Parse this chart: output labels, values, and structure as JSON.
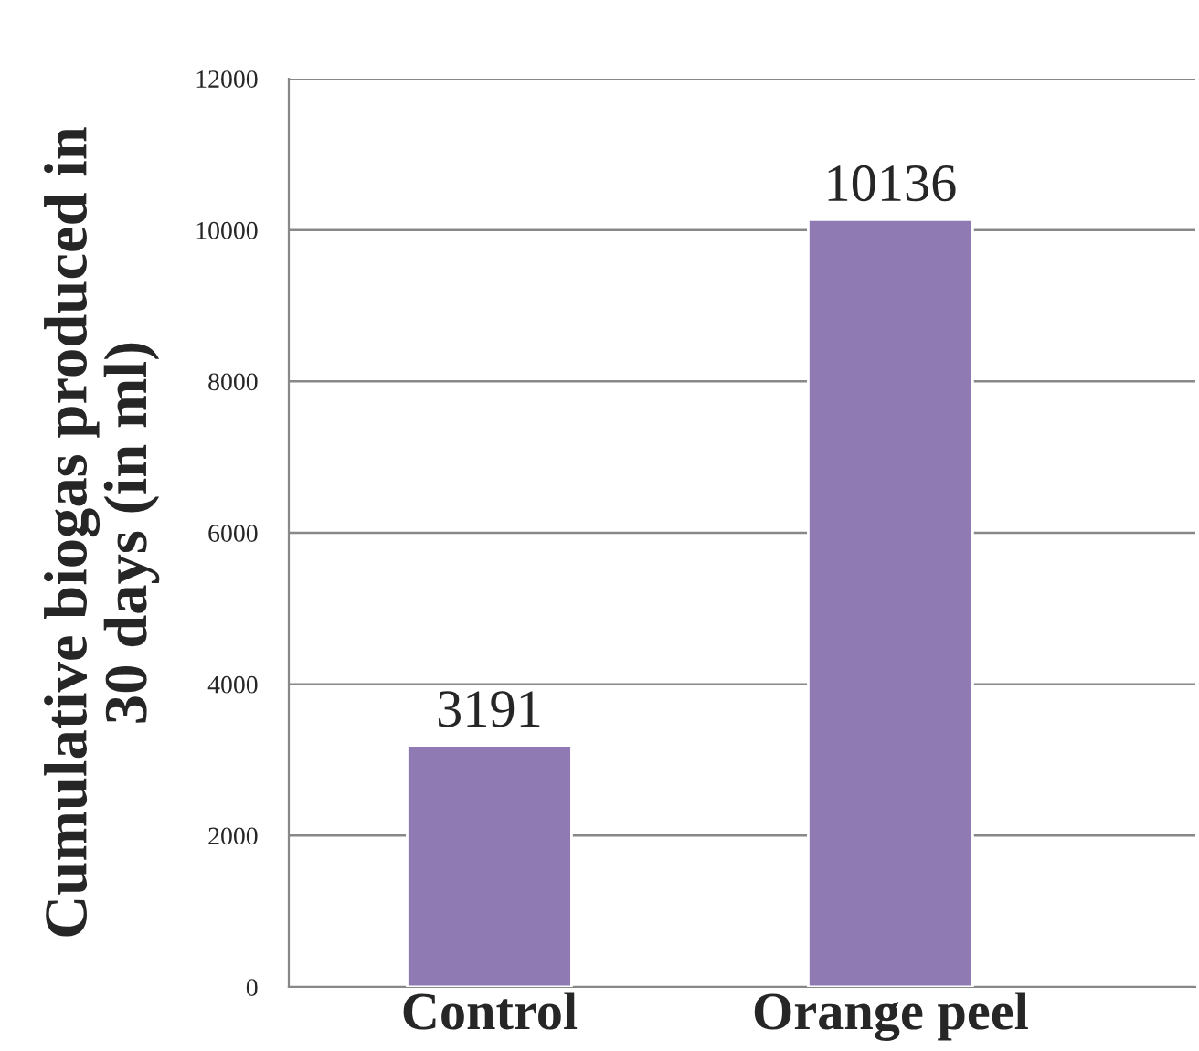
{
  "chart_data": {
    "type": "bar",
    "ylabel": "Cumulative biogas produced in\n30 days (in ml)",
    "categories": [
      "Control",
      "Orange peel"
    ],
    "values": [
      3191,
      10136
    ],
    "color": "#8f7ab3",
    "ylim": [
      0,
      12000
    ],
    "yticks": [
      0,
      2000,
      4000,
      6000,
      8000,
      10000,
      12000
    ],
    "grid": "y",
    "data_labels": true
  }
}
